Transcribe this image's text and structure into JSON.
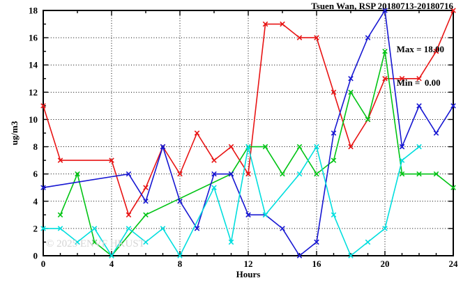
{
  "title": "Tsuen Wan, RSP 20180713-20180716",
  "legend": {
    "max_line": "Max = 18.00",
    "min_line": "Min =  0.00"
  },
  "watermark": "© 2025 ENVF HKUST",
  "chart_data": {
    "type": "line",
    "title": "Tsuen Wan, RSP 20180713-20180716",
    "xlabel": "Hours",
    "ylabel": "ug/m3",
    "xlim": [
      0,
      24
    ],
    "ylim": [
      0,
      18
    ],
    "x_ticks": [
      0,
      4,
      8,
      12,
      16,
      20,
      24
    ],
    "y_ticks": [
      0,
      2,
      4,
      6,
      8,
      10,
      12,
      14,
      16,
      18
    ],
    "x_gridlines": [
      4,
      8,
      12,
      16,
      20
    ],
    "y_gridlines": [
      2,
      4,
      6,
      8,
      10,
      12,
      14,
      16
    ],
    "grid": "dotted",
    "marker": "x-cross",
    "annotations": {
      "max": "18.00",
      "min": "0.00"
    },
    "x": [
      0,
      1,
      2,
      3,
      4,
      5,
      6,
      7,
      8,
      9,
      10,
      11,
      12,
      13,
      14,
      15,
      16,
      17,
      18,
      19,
      20,
      21,
      22,
      23,
      24
    ],
    "series": [
      {
        "name": "red",
        "color": "#e81414",
        "values": [
          11,
          7,
          null,
          null,
          7,
          3,
          5,
          8,
          6,
          9,
          7,
          8,
          6,
          17,
          17,
          16,
          16,
          12,
          8,
          10,
          13,
          13,
          13,
          15,
          18
        ]
      },
      {
        "name": "green",
        "color": "#00c414",
        "values": [
          null,
          3,
          6,
          1,
          0,
          null,
          3,
          null,
          null,
          null,
          null,
          6,
          8,
          8,
          6,
          8,
          6,
          7,
          12,
          10,
          15,
          6,
          6,
          6,
          5
        ]
      },
      {
        "name": "blue",
        "color": "#1717d2",
        "values": [
          5,
          null,
          null,
          null,
          null,
          6,
          4,
          8,
          4,
          2,
          6,
          6,
          3,
          3,
          2,
          0,
          1,
          9,
          13,
          16,
          18,
          8,
          11,
          9,
          11
        ]
      },
      {
        "name": "cyan",
        "color": "#00dede",
        "values": [
          2,
          2,
          1,
          2,
          0,
          2,
          1,
          2,
          0,
          null,
          5,
          1,
          8,
          3,
          null,
          6,
          8,
          3,
          0,
          1,
          2,
          7,
          8,
          null,
          null
        ]
      }
    ]
  }
}
